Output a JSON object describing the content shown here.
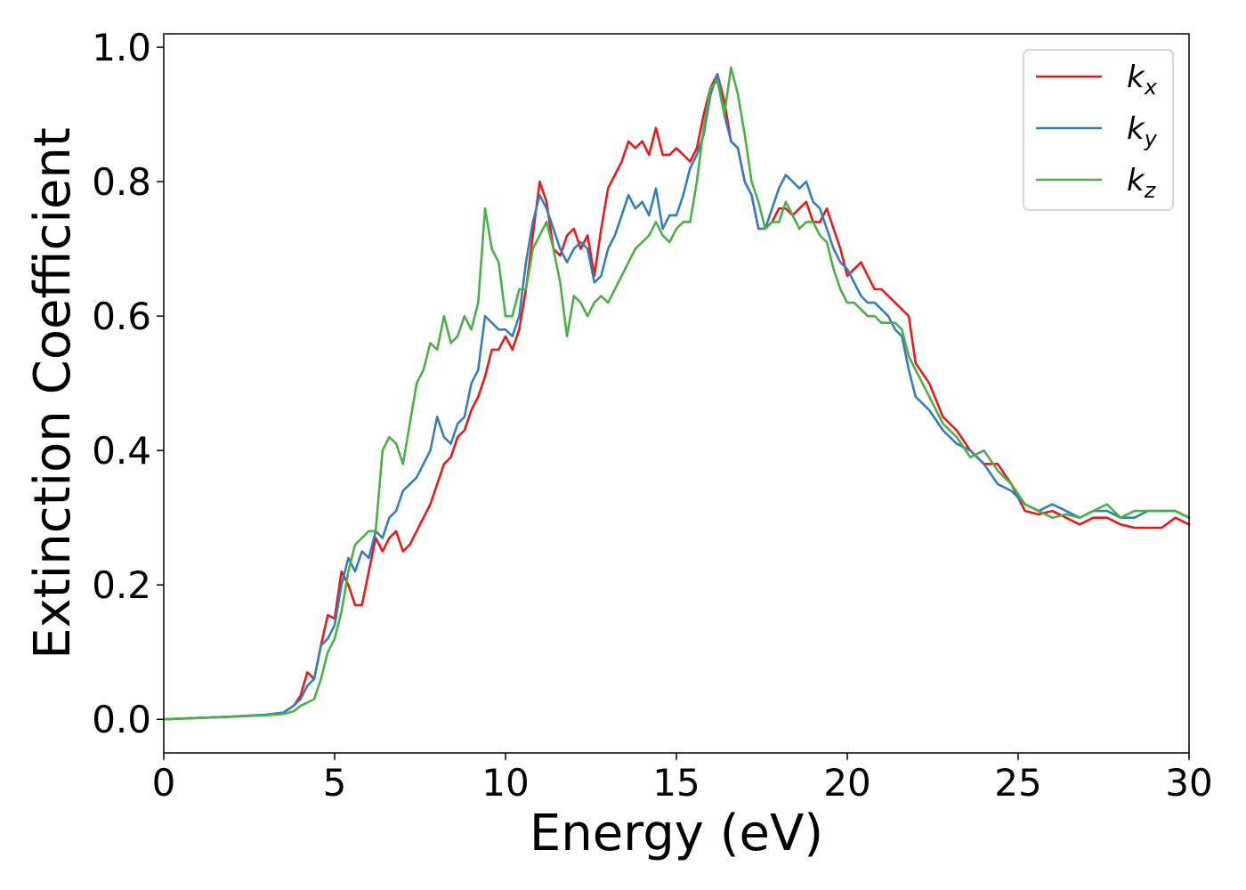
{
  "chart_data": {
    "type": "line",
    "xlabel": "Energy (eV)",
    "ylabel": "Extinction Coefficient",
    "xlim": [
      0,
      30
    ],
    "ylim": [
      -0.05,
      1.02
    ],
    "xticks": [
      0,
      5,
      10,
      15,
      20,
      25,
      30
    ],
    "xtick_labels": [
      "0",
      "5",
      "10",
      "15",
      "20",
      "25",
      "30"
    ],
    "yticks": [
      0.0,
      0.2,
      0.4,
      0.6,
      0.8,
      1.0
    ],
    "ytick_labels": [
      "0.0",
      "0.2",
      "0.4",
      "0.6",
      "0.8",
      "1.0"
    ],
    "grid": false,
    "legend_position": "top-right",
    "series": [
      {
        "name": "k",
        "subscript": "x",
        "color": "#e41a1c",
        "x": [
          0,
          1,
          2,
          3,
          3.5,
          3.8,
          4.0,
          4.2,
          4.4,
          4.6,
          4.8,
          5.0,
          5.2,
          5.4,
          5.6,
          5.8,
          6.0,
          6.2,
          6.4,
          6.6,
          6.8,
          7.0,
          7.2,
          7.4,
          7.6,
          7.8,
          8.0,
          8.2,
          8.4,
          8.6,
          8.8,
          9.0,
          9.2,
          9.4,
          9.6,
          9.8,
          10.0,
          10.2,
          10.4,
          10.6,
          10.8,
          11.0,
          11.2,
          11.4,
          11.6,
          11.8,
          12.0,
          12.2,
          12.4,
          12.6,
          12.8,
          13.0,
          13.2,
          13.4,
          13.6,
          13.8,
          14.0,
          14.2,
          14.4,
          14.6,
          14.8,
          15.0,
          15.2,
          15.4,
          15.6,
          15.8,
          16.0,
          16.2,
          16.4,
          16.6,
          16.8,
          17.0,
          17.2,
          17.4,
          17.6,
          17.8,
          18.0,
          18.2,
          18.4,
          18.6,
          18.8,
          19.0,
          19.2,
          19.4,
          19.6,
          19.8,
          20.0,
          20.2,
          20.4,
          20.6,
          20.8,
          21.0,
          21.2,
          21.4,
          21.6,
          21.8,
          22.0,
          22.4,
          22.8,
          23.2,
          23.6,
          24.0,
          24.4,
          24.8,
          25.2,
          25.6,
          26.0,
          26.4,
          26.8,
          27.2,
          27.6,
          28.0,
          28.4,
          28.8,
          29.2,
          29.6,
          30.0
        ],
        "y": [
          0,
          0.002,
          0.004,
          0.007,
          0.01,
          0.02,
          0.035,
          0.07,
          0.06,
          0.11,
          0.155,
          0.15,
          0.22,
          0.2,
          0.17,
          0.17,
          0.22,
          0.27,
          0.25,
          0.27,
          0.28,
          0.25,
          0.26,
          0.28,
          0.3,
          0.32,
          0.35,
          0.38,
          0.39,
          0.42,
          0.43,
          0.46,
          0.48,
          0.51,
          0.55,
          0.55,
          0.57,
          0.55,
          0.58,
          0.64,
          0.72,
          0.8,
          0.77,
          0.7,
          0.69,
          0.72,
          0.73,
          0.7,
          0.72,
          0.66,
          0.73,
          0.79,
          0.81,
          0.83,
          0.86,
          0.85,
          0.86,
          0.84,
          0.88,
          0.84,
          0.84,
          0.85,
          0.84,
          0.83,
          0.85,
          0.9,
          0.94,
          0.96,
          0.92,
          0.86,
          0.85,
          0.8,
          0.78,
          0.73,
          0.73,
          0.74,
          0.76,
          0.76,
          0.75,
          0.76,
          0.77,
          0.74,
          0.74,
          0.76,
          0.73,
          0.7,
          0.66,
          0.67,
          0.68,
          0.66,
          0.64,
          0.64,
          0.63,
          0.62,
          0.61,
          0.6,
          0.53,
          0.5,
          0.45,
          0.43,
          0.4,
          0.38,
          0.38,
          0.35,
          0.31,
          0.305,
          0.31,
          0.3,
          0.29,
          0.3,
          0.3,
          0.29,
          0.285,
          0.285,
          0.285,
          0.3,
          0.29
        ]
      },
      {
        "name": "k",
        "subscript": "y",
        "color": "#377eb8",
        "x": [
          0,
          1,
          2,
          3,
          3.5,
          3.8,
          4.0,
          4.2,
          4.4,
          4.6,
          4.8,
          5.0,
          5.2,
          5.4,
          5.6,
          5.8,
          6.0,
          6.2,
          6.4,
          6.6,
          6.8,
          7.0,
          7.2,
          7.4,
          7.6,
          7.8,
          8.0,
          8.2,
          8.4,
          8.6,
          8.8,
          9.0,
          9.2,
          9.4,
          9.6,
          9.8,
          10.0,
          10.2,
          10.4,
          10.6,
          10.8,
          11.0,
          11.2,
          11.4,
          11.6,
          11.8,
          12.0,
          12.2,
          12.4,
          12.6,
          12.8,
          13.0,
          13.2,
          13.4,
          13.6,
          13.8,
          14.0,
          14.2,
          14.4,
          14.6,
          14.8,
          15.0,
          15.2,
          15.4,
          15.6,
          15.8,
          16.0,
          16.2,
          16.4,
          16.6,
          16.8,
          17.0,
          17.2,
          17.4,
          17.6,
          17.8,
          18.0,
          18.2,
          18.4,
          18.6,
          18.8,
          19.0,
          19.2,
          19.4,
          19.6,
          19.8,
          20.0,
          20.2,
          20.4,
          20.6,
          20.8,
          21.0,
          21.2,
          21.4,
          21.6,
          21.8,
          22.0,
          22.4,
          22.8,
          23.2,
          23.6,
          24.0,
          24.4,
          24.8,
          25.2,
          25.6,
          26.0,
          26.4,
          26.8,
          27.2,
          27.6,
          28.0,
          28.4,
          28.8,
          29.2,
          29.6,
          30.0
        ],
        "y": [
          0,
          0.002,
          0.004,
          0.007,
          0.01,
          0.02,
          0.03,
          0.05,
          0.06,
          0.11,
          0.12,
          0.14,
          0.2,
          0.24,
          0.22,
          0.25,
          0.24,
          0.28,
          0.27,
          0.3,
          0.31,
          0.34,
          0.35,
          0.36,
          0.38,
          0.4,
          0.45,
          0.42,
          0.41,
          0.44,
          0.45,
          0.5,
          0.52,
          0.6,
          0.59,
          0.58,
          0.58,
          0.57,
          0.6,
          0.68,
          0.74,
          0.78,
          0.76,
          0.73,
          0.7,
          0.68,
          0.7,
          0.71,
          0.7,
          0.65,
          0.66,
          0.7,
          0.72,
          0.75,
          0.78,
          0.76,
          0.77,
          0.75,
          0.79,
          0.73,
          0.75,
          0.75,
          0.78,
          0.82,
          0.84,
          0.87,
          0.93,
          0.96,
          0.9,
          0.86,
          0.85,
          0.8,
          0.78,
          0.73,
          0.73,
          0.76,
          0.79,
          0.81,
          0.8,
          0.79,
          0.8,
          0.77,
          0.76,
          0.73,
          0.7,
          0.68,
          0.67,
          0.65,
          0.63,
          0.62,
          0.62,
          0.61,
          0.6,
          0.58,
          0.57,
          0.52,
          0.48,
          0.46,
          0.43,
          0.41,
          0.4,
          0.38,
          0.35,
          0.34,
          0.32,
          0.31,
          0.32,
          0.31,
          0.3,
          0.31,
          0.31,
          0.3,
          0.3,
          0.31,
          0.31,
          0.31,
          0.3
        ]
      },
      {
        "name": "k",
        "subscript": "z",
        "color": "#4daf4a",
        "x": [
          0,
          1,
          2,
          3,
          3.5,
          3.8,
          4.0,
          4.2,
          4.4,
          4.6,
          4.8,
          5.0,
          5.2,
          5.4,
          5.6,
          5.8,
          6.0,
          6.2,
          6.4,
          6.6,
          6.8,
          7.0,
          7.2,
          7.4,
          7.6,
          7.8,
          8.0,
          8.2,
          8.4,
          8.6,
          8.8,
          9.0,
          9.2,
          9.4,
          9.6,
          9.8,
          10.0,
          10.2,
          10.4,
          10.6,
          10.8,
          11.0,
          11.2,
          11.4,
          11.6,
          11.8,
          12.0,
          12.2,
          12.4,
          12.6,
          12.8,
          13.0,
          13.2,
          13.4,
          13.6,
          13.8,
          14.0,
          14.2,
          14.4,
          14.6,
          14.8,
          15.0,
          15.2,
          15.4,
          15.6,
          15.8,
          16.0,
          16.2,
          16.4,
          16.6,
          16.8,
          17.0,
          17.2,
          17.4,
          17.6,
          17.8,
          18.0,
          18.2,
          18.4,
          18.6,
          18.8,
          19.0,
          19.2,
          19.4,
          19.6,
          19.8,
          20.0,
          20.2,
          20.4,
          20.6,
          20.8,
          21.0,
          21.2,
          21.4,
          21.6,
          21.8,
          22.0,
          22.4,
          22.8,
          23.2,
          23.6,
          24.0,
          24.4,
          24.8,
          25.2,
          25.6,
          26.0,
          26.4,
          26.8,
          27.2,
          27.6,
          28.0,
          28.4,
          28.8,
          29.2,
          29.6,
          30.0
        ],
        "y": [
          0,
          0.002,
          0.004,
          0.006,
          0.008,
          0.012,
          0.02,
          0.025,
          0.03,
          0.06,
          0.1,
          0.12,
          0.16,
          0.22,
          0.26,
          0.27,
          0.28,
          0.28,
          0.4,
          0.42,
          0.41,
          0.38,
          0.44,
          0.5,
          0.52,
          0.56,
          0.55,
          0.6,
          0.56,
          0.57,
          0.6,
          0.58,
          0.62,
          0.76,
          0.7,
          0.68,
          0.6,
          0.6,
          0.64,
          0.64,
          0.7,
          0.72,
          0.74,
          0.7,
          0.65,
          0.57,
          0.63,
          0.62,
          0.6,
          0.62,
          0.63,
          0.62,
          0.64,
          0.66,
          0.68,
          0.7,
          0.71,
          0.72,
          0.74,
          0.72,
          0.71,
          0.73,
          0.74,
          0.74,
          0.8,
          0.88,
          0.94,
          0.95,
          0.9,
          0.97,
          0.93,
          0.87,
          0.8,
          0.77,
          0.73,
          0.74,
          0.74,
          0.77,
          0.75,
          0.73,
          0.74,
          0.74,
          0.72,
          0.71,
          0.67,
          0.64,
          0.62,
          0.62,
          0.61,
          0.6,
          0.6,
          0.59,
          0.59,
          0.59,
          0.58,
          0.54,
          0.52,
          0.48,
          0.44,
          0.42,
          0.39,
          0.4,
          0.37,
          0.35,
          0.32,
          0.31,
          0.3,
          0.305,
          0.3,
          0.31,
          0.32,
          0.3,
          0.31,
          0.31,
          0.31,
          0.31,
          0.3
        ]
      }
    ]
  }
}
